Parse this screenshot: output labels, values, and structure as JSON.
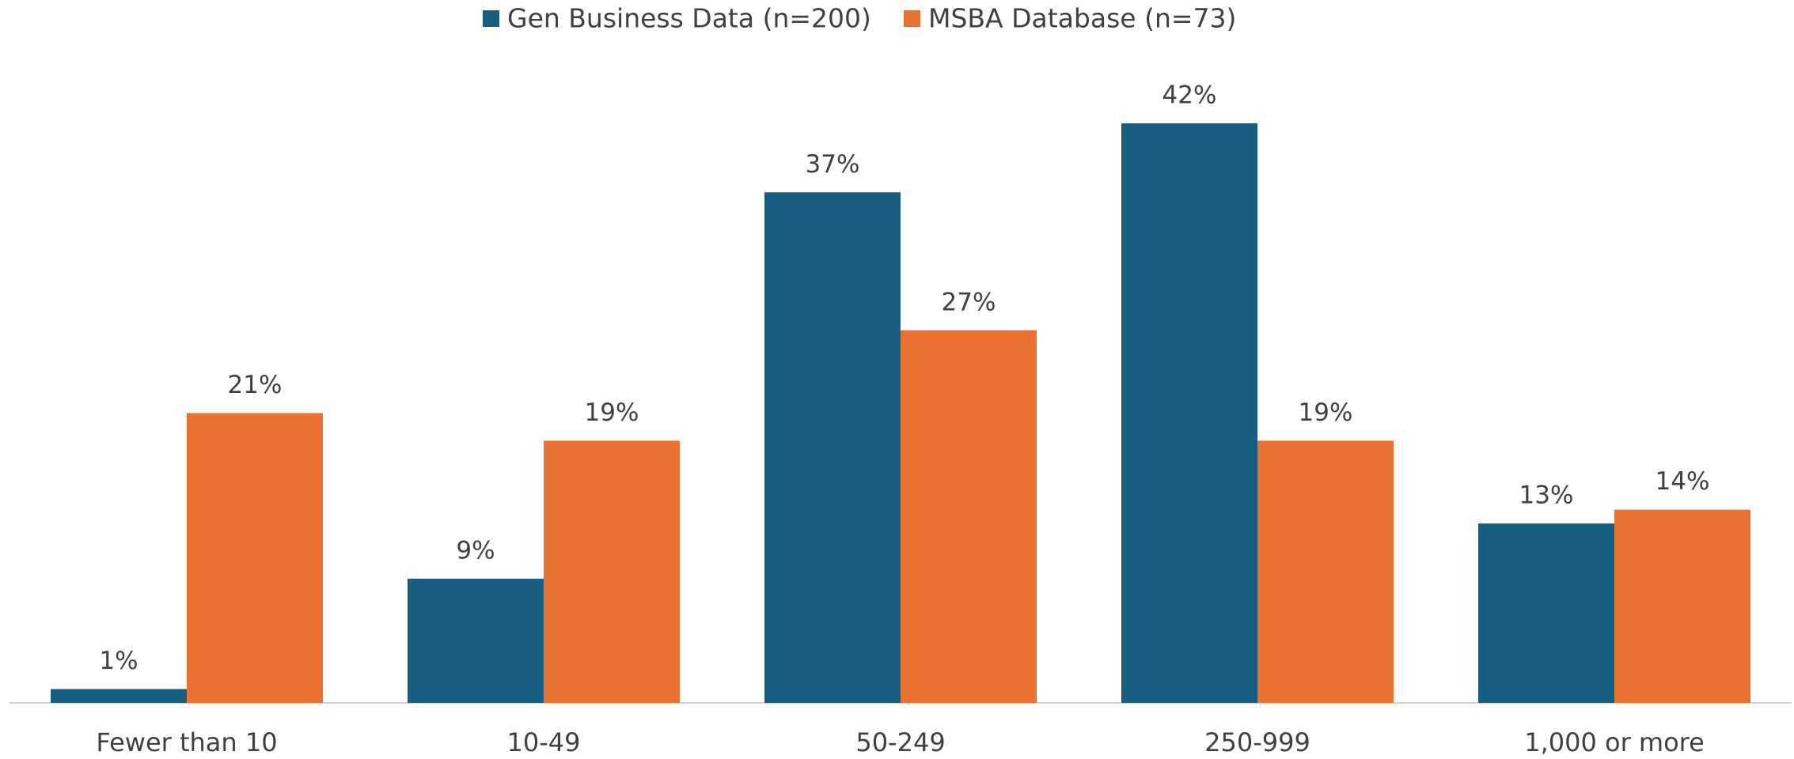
{
  "chart_data": {
    "type": "bar",
    "categories": [
      "Fewer than 10",
      "10-49",
      "50-249",
      "250-999",
      "1,000 or more"
    ],
    "series": [
      {
        "name": "Gen Business Data (n=200)",
        "color": "#165f80",
        "values": [
          1,
          9,
          37,
          42,
          13
        ],
        "value_labels": [
          "1%",
          "9%",
          "37%",
          "42%",
          "13%"
        ]
      },
      {
        "name": "MSBA Database (n=73)",
        "color": "#e97132",
        "values": [
          21,
          19,
          27,
          19,
          14
        ],
        "value_labels": [
          "21%",
          "19%",
          "27%",
          "19%",
          "14%"
        ]
      }
    ],
    "legend": "top"
  }
}
